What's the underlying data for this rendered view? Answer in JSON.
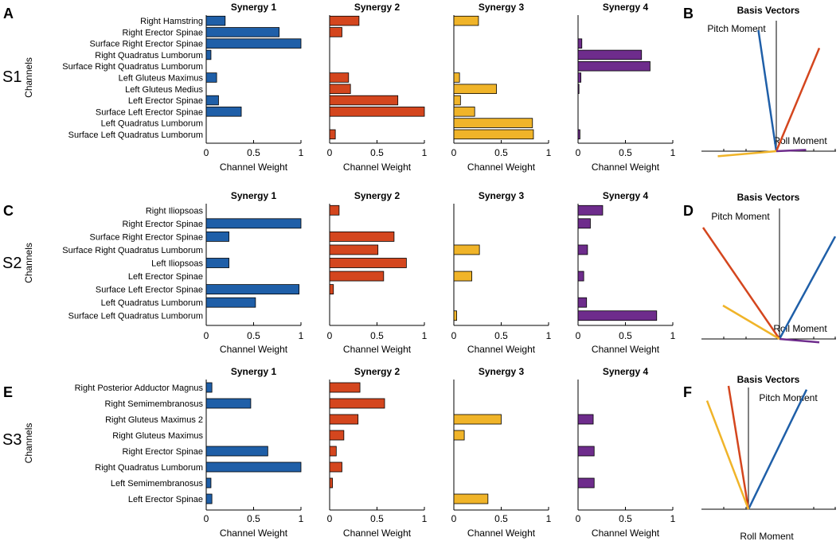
{
  "colors": {
    "synergy_1": "#1f5fa8",
    "synergy_2": "#d4461e",
    "synergy_3": "#f0b429",
    "synergy_4": "#6e2c8c",
    "axis": "#000000"
  },
  "chart_data": {
    "common": {
      "type": "bar",
      "orientation": "horizontal",
      "xlabel": "Channel Weight",
      "ylabel": "Channels",
      "xlim": [
        0,
        1
      ],
      "xticks": [
        "0",
        "0.5",
        "1"
      ],
      "panel_titles": [
        "Synergy 1",
        "Synergy 2",
        "Synergy 3",
        "Synergy 4"
      ],
      "basis_title": "Basis Vectors"
    },
    "subjects": [
      {
        "subject_label": "S1",
        "panel_letter": "A",
        "basis_letter": "B",
        "categories": [
          "Right Hamstring",
          "Right Erector Spinae",
          "Surface Right Erector Spinae",
          "Right Quadratus Lumborum",
          "Surface Right Quadratus Lumborum",
          "Left Gluteus Maximus",
          "Left Gluteus Medius",
          "Left Erector Spinae",
          "Surface Left Erector Spinae",
          "Left Quadratus Lumborum",
          "Surface Left Quadratus Lumborum"
        ],
        "series": [
          {
            "name": "Synergy 1",
            "values": [
              0.2,
              0.77,
              1.0,
              0.05,
              0.0,
              0.11,
              0.0,
              0.13,
              0.37,
              0.0,
              0.0
            ]
          },
          {
            "name": "Synergy 2",
            "values": [
              0.31,
              0.13,
              0.0,
              0.0,
              0.0,
              0.2,
              0.22,
              0.72,
              1.0,
              0.0,
              0.06
            ]
          },
          {
            "name": "Synergy 3",
            "values": [
              0.26,
              0.0,
              0.0,
              0.0,
              0.0,
              0.06,
              0.45,
              0.07,
              0.22,
              0.83,
              0.84
            ]
          },
          {
            "name": "Synergy 4",
            "values": [
              0.0,
              0.0,
              0.04,
              0.67,
              0.76,
              0.03,
              0.01,
              0.0,
              0.0,
              0.0,
              0.02
            ]
          }
        ],
        "basis": {
          "pitch_label": "Pitch Moment",
          "roll_label": "Roll Moment",
          "vectors": [
            {
              "name": "Synergy 1",
              "x": -0.3,
              "y": 0.95
            },
            {
              "name": "Synergy 2",
              "x": 0.72,
              "y": 0.81
            },
            {
              "name": "Synergy 3",
              "x": -0.98,
              "y": -0.04
            },
            {
              "name": "Synergy 4",
              "x": 0.5,
              "y": 0.01
            }
          ]
        }
      },
      {
        "subject_label": "S2",
        "panel_letter": "C",
        "basis_letter": "D",
        "categories": [
          "Right Iliopsoas",
          "Right Erector Spinae",
          "Surface Right Erector Spinae",
          "Surface Right Quadratus Lumborum",
          "Left Iliopsoas",
          "Left Erector Spinae",
          "Surface Left Erector Spinae",
          "Left Quadratus Lumborum",
          "Surface Left Quadratus Lumborum"
        ],
        "series": [
          {
            "name": "Synergy 1",
            "values": [
              0.0,
              1.0,
              0.24,
              0.0,
              0.24,
              0.0,
              0.98,
              0.52,
              0.0
            ]
          },
          {
            "name": "Synergy 2",
            "values": [
              0.1,
              0.0,
              0.68,
              0.51,
              0.81,
              0.57,
              0.04,
              0.0,
              0.0
            ]
          },
          {
            "name": "Synergy 3",
            "values": [
              0.0,
              0.0,
              0.0,
              0.27,
              0.0,
              0.19,
              0.0,
              0.0,
              0.03
            ]
          },
          {
            "name": "Synergy 4",
            "values": [
              0.26,
              0.13,
              0.0,
              0.1,
              0.0,
              0.06,
              0.0,
              0.09,
              0.83
            ]
          }
        ],
        "basis": {
          "pitch_label": "Pitch Moment",
          "roll_label": "Roll Moment",
          "vectors": [
            {
              "name": "Synergy 1",
              "x": 0.7,
              "y": 0.92
            },
            {
              "name": "Synergy 2",
              "x": -0.96,
              "y": 1.0
            },
            {
              "name": "Synergy 3",
              "x": -0.71,
              "y": 0.3
            },
            {
              "name": "Synergy 4",
              "x": 0.5,
              "y": -0.03
            }
          ]
        }
      },
      {
        "subject_label": "S3",
        "panel_letter": "E",
        "basis_letter": "F",
        "categories": [
          "Right Posterior Adductor Magnus",
          "Right Semimembranosus",
          "Right Gluteus Maximus 2",
          "Right Gluteus Maximus",
          "Right Erector Spinae",
          "Right Quadratus Lumborum",
          "Left Semimembranosus",
          "Left Erector Spinae"
        ],
        "series": [
          {
            "name": "Synergy 1",
            "values": [
              0.06,
              0.47,
              0.0,
              0.0,
              0.65,
              1.0,
              0.05,
              0.06
            ]
          },
          {
            "name": "Synergy 2",
            "values": [
              0.32,
              0.58,
              0.3,
              0.15,
              0.07,
              0.13,
              0.03,
              0.0
            ]
          },
          {
            "name": "Synergy 3",
            "values": [
              0.0,
              0.0,
              0.5,
              0.11,
              0.0,
              0.0,
              0.0,
              0.36
            ]
          },
          {
            "name": "Synergy 4",
            "values": [
              0.0,
              0.0,
              0.16,
              0.0,
              0.17,
              0.0,
              0.17,
              0.0
            ]
          }
        ],
        "basis": {
          "pitch_label": "Pitch Moment",
          "roll_label": "Roll Moment",
          "vectors": [
            {
              "name": "Synergy 1",
              "x": 0.73,
              "y": 0.97
            },
            {
              "name": "Synergy 2",
              "x": -0.25,
              "y": 1.0
            },
            {
              "name": "Synergy 3",
              "x": -0.52,
              "y": 0.88
            },
            {
              "name": "Synergy 4",
              "x": 0.0,
              "y": 0.0
            }
          ]
        }
      }
    ]
  }
}
